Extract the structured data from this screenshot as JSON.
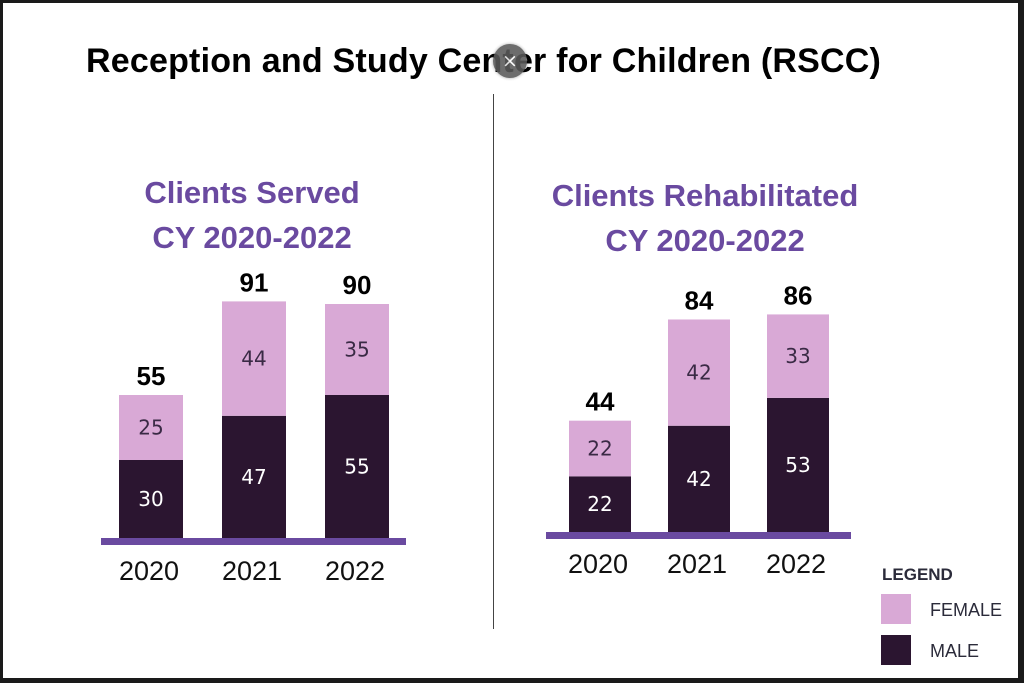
{
  "page": {
    "title": "Reception and Study Center for Children (RSCC)",
    "close_glyph": "×",
    "close_icon": "close-icon"
  },
  "colors": {
    "female": "#d9a9d6",
    "male": "#2b1530",
    "baseline": "#6a4aa0",
    "title": "#6a4aa0"
  },
  "legend": {
    "title": "LEGEND",
    "items": [
      {
        "label": "FEMALE",
        "color": "#d9a9d6"
      },
      {
        "label": "MALE",
        "color": "#2b1530"
      }
    ]
  },
  "chart_data": [
    {
      "type": "bar",
      "stacked": true,
      "title": [
        "Clients Served",
        "CY 2020-2022"
      ],
      "categories": [
        "2020",
        "2021",
        "2022"
      ],
      "series": [
        {
          "name": "MALE",
          "values": [
            30,
            47,
            55
          ]
        },
        {
          "name": "FEMALE",
          "values": [
            25,
            44,
            35
          ]
        }
      ],
      "totals": [
        55,
        91,
        90
      ],
      "ylim": [
        0,
        100
      ],
      "grid": false,
      "legend": "bottom-right"
    },
    {
      "type": "bar",
      "stacked": true,
      "title": [
        "Clients Rehabilitated",
        "CY 2020-2022"
      ],
      "categories": [
        "2020",
        "2021",
        "2022"
      ],
      "series": [
        {
          "name": "MALE",
          "values": [
            22,
            42,
            53
          ]
        },
        {
          "name": "FEMALE",
          "values": [
            22,
            42,
            33
          ]
        }
      ],
      "totals": [
        44,
        84,
        86
      ],
      "ylim": [
        0,
        100
      ],
      "grid": false,
      "legend": "bottom-right"
    }
  ]
}
